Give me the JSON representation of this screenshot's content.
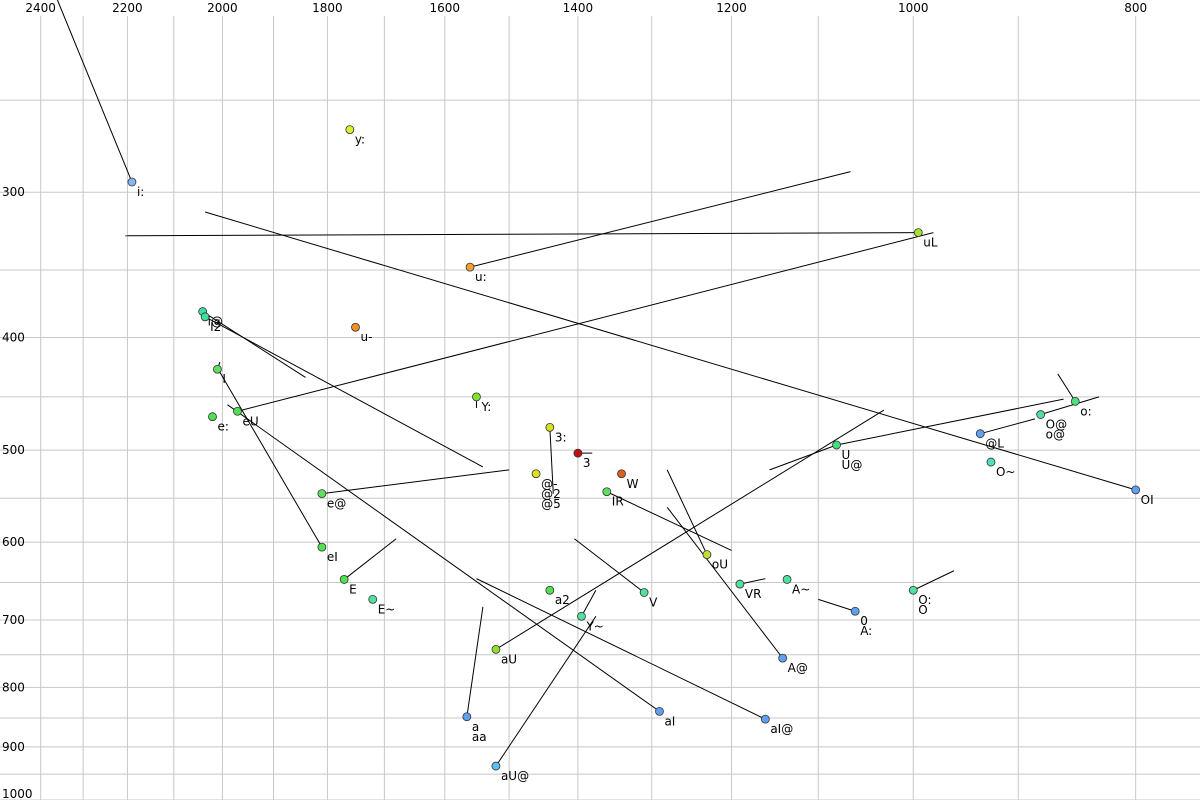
{
  "chart_data": {
    "type": "scatter",
    "title": "",
    "xlabel": "",
    "ylabel": "",
    "x_axis": {
      "reversed": true,
      "scale": "log",
      "range": [
        2500,
        750
      ],
      "ticks": [
        2400,
        2200,
        2000,
        1800,
        1600,
        1400,
        1200,
        1000,
        800
      ],
      "minor_grid": [
        2300,
        2100,
        1900,
        1700,
        1500,
        1300,
        1100,
        900
      ]
    },
    "y_axis": {
      "scale": "log",
      "range": [
        205,
        1000
      ],
      "ticks": [
        300,
        400,
        500,
        600,
        700,
        800,
        900,
        1000
      ],
      "minor_grid": [
        250,
        350,
        450,
        550,
        650,
        750,
        850,
        950
      ]
    },
    "grid": true,
    "legend": "none",
    "points": [
      {
        "label": "i:",
        "f2": 2190,
        "f1": 294,
        "color": "#8ab4f8",
        "trail": [
          2360,
          205
        ]
      },
      {
        "label": "y:",
        "f2": 1760,
        "f1": 265,
        "color": "#d8f030"
      },
      {
        "label": "uL",
        "f2": 995,
        "f1": 325,
        "color": "#a8e030",
        "trail": [
          2205,
          327
        ]
      },
      {
        "label": "u:",
        "f2": 1560,
        "f1": 348,
        "color": "#f0a030",
        "trail": [
          1065,
          288
        ]
      },
      {
        "label": "i@",
        "f2": 2040,
        "f1": 380,
        "color": "#40e0a0",
        "trail": [
          1840,
          433
        ]
      },
      {
        "label": "I2",
        "f2": 2035,
        "f1": 384,
        "color": "#40e0a0",
        "trail": [
          1540,
          517
        ]
      },
      {
        "label": "u-",
        "f2": 1750,
        "f1": 392,
        "color": "#f09020"
      },
      {
        "label": "I",
        "f2": 2010,
        "f1": 426,
        "color": "#60e060",
        "trail": [
          2005,
          420
        ]
      },
      {
        "label": "Y:",
        "f2": 1550,
        "f1": 450,
        "color": "#80e030",
        "trail": [
          1550,
          460
        ]
      },
      {
        "label": "eU",
        "f2": 1970,
        "f1": 463,
        "color": "#50e050",
        "trail": [
          980,
          325
        ]
      },
      {
        "label": "e:",
        "f2": 2020,
        "f1": 468,
        "color": "#50e050"
      },
      {
        "label": "o:",
        "f2": 850,
        "f1": 454,
        "color": "#50e080",
        "trail": [
          865,
          430
        ]
      },
      {
        "label": "O@",
        "f2": 880,
        "f1": 466,
        "color": "#50e0a0",
        "trail": [
          830,
          450
        ]
      },
      {
        "label": "o@",
        "f2": 880,
        "f1": 466,
        "color": "#50e0a0"
      },
      {
        "label": "@L",
        "f2": 935,
        "f1": 484,
        "color": "#60a0f0",
        "trail": [
          885,
          470
        ]
      },
      {
        "label": "3:",
        "f2": 1440,
        "f1": 478,
        "color": "#d8e020",
        "trail": [
          1435,
          545
        ]
      },
      {
        "label": "U",
        "f2": 1080,
        "f1": 495,
        "color": "#40e080",
        "trail": [
          1155,
          520
        ]
      },
      {
        "label": "U@",
        "f2": 1080,
        "f1": 495,
        "color": "#40e080",
        "trail": [
          860,
          452
        ]
      },
      {
        "label": "3",
        "f2": 1400,
        "f1": 503,
        "color": "#c01010",
        "trail": [
          1380,
          503
        ]
      },
      {
        "label": "O~",
        "f2": 925,
        "f1": 512,
        "color": "#50e0c0"
      },
      {
        "label": "@-",
        "f2": 1460,
        "f1": 524,
        "color": "#e0e020"
      },
      {
        "label": "@2",
        "f2": 1460,
        "f1": 524,
        "color": "#e0e020"
      },
      {
        "label": "@5",
        "f2": 1460,
        "f1": 524,
        "color": "#e0e020"
      },
      {
        "label": "W",
        "f2": 1340,
        "f1": 524,
        "color": "#e06020"
      },
      {
        "label": "e@",
        "f2": 1810,
        "f1": 545,
        "color": "#60e060",
        "trail": [
          1500,
          520
        ]
      },
      {
        "label": "IR",
        "f2": 1360,
        "f1": 543,
        "color": "#60e060",
        "trail": [
          1200,
          610
        ]
      },
      {
        "label": "OI",
        "f2": 800,
        "f1": 541,
        "color": "#60a0f0",
        "trail": [
          2035,
          312
        ]
      },
      {
        "label": "eI",
        "f2": 1810,
        "f1": 606,
        "color": "#50e050",
        "trail": [
          2010,
          425
        ]
      },
      {
        "label": "oU",
        "f2": 1230,
        "f1": 615,
        "color": "#c0e030",
        "trail": [
          1280,
          520
        ]
      },
      {
        "label": "E",
        "f2": 1770,
        "f1": 646,
        "color": "#50e050",
        "trail": [
          1680,
          596
        ]
      },
      {
        "label": "VR",
        "f2": 1190,
        "f1": 652,
        "color": "#50e0a0",
        "trail": [
          1160,
          645
        ]
      },
      {
        "label": "A~",
        "f2": 1135,
        "f1": 646,
        "color": "#50e0a0"
      },
      {
        "label": "a2",
        "f2": 1440,
        "f1": 660,
        "color": "#50e050"
      },
      {
        "label": "V",
        "f2": 1310,
        "f1": 663,
        "color": "#50e0a0",
        "trail": [
          1405,
          596
        ]
      },
      {
        "label": "O:",
        "f2": 1000,
        "f1": 660,
        "color": "#50e0a0",
        "trail": [
          960,
          635
        ]
      },
      {
        "label": "O",
        "f2": 1000,
        "f1": 660,
        "color": "#50e0a0"
      },
      {
        "label": "E~",
        "f2": 1720,
        "f1": 672,
        "color": "#50e0a0"
      },
      {
        "label": "0",
        "f2": 1060,
        "f1": 688,
        "color": "#60a0f0",
        "trail": [
          1100,
          672
        ]
      },
      {
        "label": "A:",
        "f2": 1060,
        "f1": 688,
        "color": "#60a0f0"
      },
      {
        "label": "Y~",
        "f2": 1395,
        "f1": 695,
        "color": "#50e0a0",
        "trail": [
          1375,
          660
        ]
      },
      {
        "label": "aU",
        "f2": 1520,
        "f1": 742,
        "color": "#90e030",
        "trail": [
          1030,
          462
        ]
      },
      {
        "label": "A@",
        "f2": 1140,
        "f1": 755,
        "color": "#60a0f0",
        "trail": [
          1280,
          560
        ]
      },
      {
        "label": "aI",
        "f2": 1290,
        "f1": 839,
        "color": "#60a0f0",
        "trail": [
          1990,
          457
        ]
      },
      {
        "label": "aI@",
        "f2": 1160,
        "f1": 852,
        "color": "#60a0f0",
        "trail": [
          1550,
          645
        ]
      },
      {
        "label": "a",
        "f2": 1565,
        "f1": 848,
        "color": "#60a0f0",
        "trail": [
          1540,
          682
        ]
      },
      {
        "label": "aa",
        "f2": 1565,
        "f1": 848,
        "color": "#60a0f0"
      },
      {
        "label": "aU@",
        "f2": 1520,
        "f1": 935,
        "color": "#60c0f0",
        "trail": [
          1375,
          695
        ]
      }
    ]
  }
}
